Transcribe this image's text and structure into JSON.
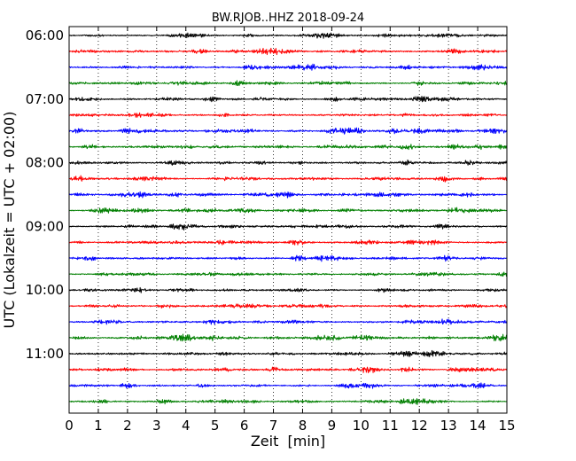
{
  "chart_data": {
    "type": "line",
    "title": "BW.RJOB..HHZ 2018-09-24",
    "xlabel": "Zeit  [min]",
    "ylabel": "UTC (Lokalzeit = UTC + 02:00)",
    "xlim": [
      0,
      15
    ],
    "x_ticks": [
      "0",
      "1",
      "2",
      "3",
      "4",
      "5",
      "6",
      "7",
      "8",
      "9",
      "10",
      "11",
      "12",
      "13",
      "14",
      "15"
    ],
    "y_tick_labels": [
      "06:00",
      "07:00",
      "08:00",
      "09:00",
      "10:00",
      "11:00"
    ],
    "grid": "vertical dotted",
    "trace_minutes": 15,
    "traces_per_hour": 4,
    "series": [
      {
        "start": "06:00",
        "color": "#000000"
      },
      {
        "start": "06:15",
        "color": "#ff0000"
      },
      {
        "start": "06:30",
        "color": "#0000ff"
      },
      {
        "start": "06:45",
        "color": "#007f00"
      },
      {
        "start": "07:00",
        "color": "#000000"
      },
      {
        "start": "07:15",
        "color": "#ff0000"
      },
      {
        "start": "07:30",
        "color": "#0000ff"
      },
      {
        "start": "07:45",
        "color": "#007f00"
      },
      {
        "start": "08:00",
        "color": "#000000"
      },
      {
        "start": "08:15",
        "color": "#ff0000"
      },
      {
        "start": "08:30",
        "color": "#0000ff"
      },
      {
        "start": "08:45",
        "color": "#007f00"
      },
      {
        "start": "09:00",
        "color": "#000000"
      },
      {
        "start": "09:15",
        "color": "#ff0000"
      },
      {
        "start": "09:30",
        "color": "#0000ff"
      },
      {
        "start": "09:45",
        "color": "#007f00"
      },
      {
        "start": "10:00",
        "color": "#000000"
      },
      {
        "start": "10:15",
        "color": "#ff0000"
      },
      {
        "start": "10:30",
        "color": "#0000ff"
      },
      {
        "start": "10:45",
        "color": "#007f00"
      },
      {
        "start": "11:00",
        "color": "#000000"
      },
      {
        "start": "11:15",
        "color": "#ff0000"
      },
      {
        "start": "11:30",
        "color": "#0000ff"
      },
      {
        "start": "11:45",
        "color": "#007f00"
      }
    ]
  }
}
